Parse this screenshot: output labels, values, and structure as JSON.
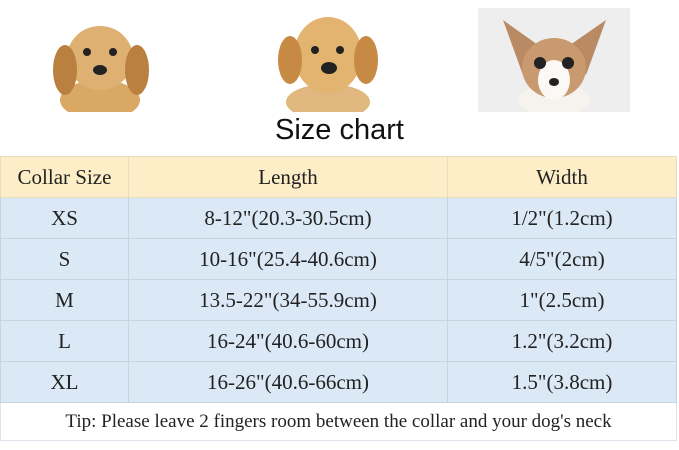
{
  "title": "Size chart",
  "headers": [
    "Collar Size",
    "Length",
    "Width"
  ],
  "rows": [
    {
      "size": "XS",
      "length": "8-12\"(20.3-30.5cm)",
      "width": "1/2\"(1.2cm)"
    },
    {
      "size": "S",
      "length": "10-16\"(25.4-40.6cm)",
      "width": "4/5\"(2cm)"
    },
    {
      "size": "M",
      "length": "13.5-22\"(34-55.9cm)",
      "width": "1\"(2.5cm)"
    },
    {
      "size": "L",
      "length": "16-24\"(40.6-60cm)",
      "width": "1.2\"(3.2cm)"
    },
    {
      "size": "XL",
      "length": "16-26\"(40.6-66cm)",
      "width": "1.5\"(3.8cm)"
    }
  ],
  "tip": "Tip: Please leave 2 fingers room between the collar and your dog's neck",
  "colors": {
    "header_bg": "#fdeec8",
    "row_bg": "#dbe8f5"
  }
}
